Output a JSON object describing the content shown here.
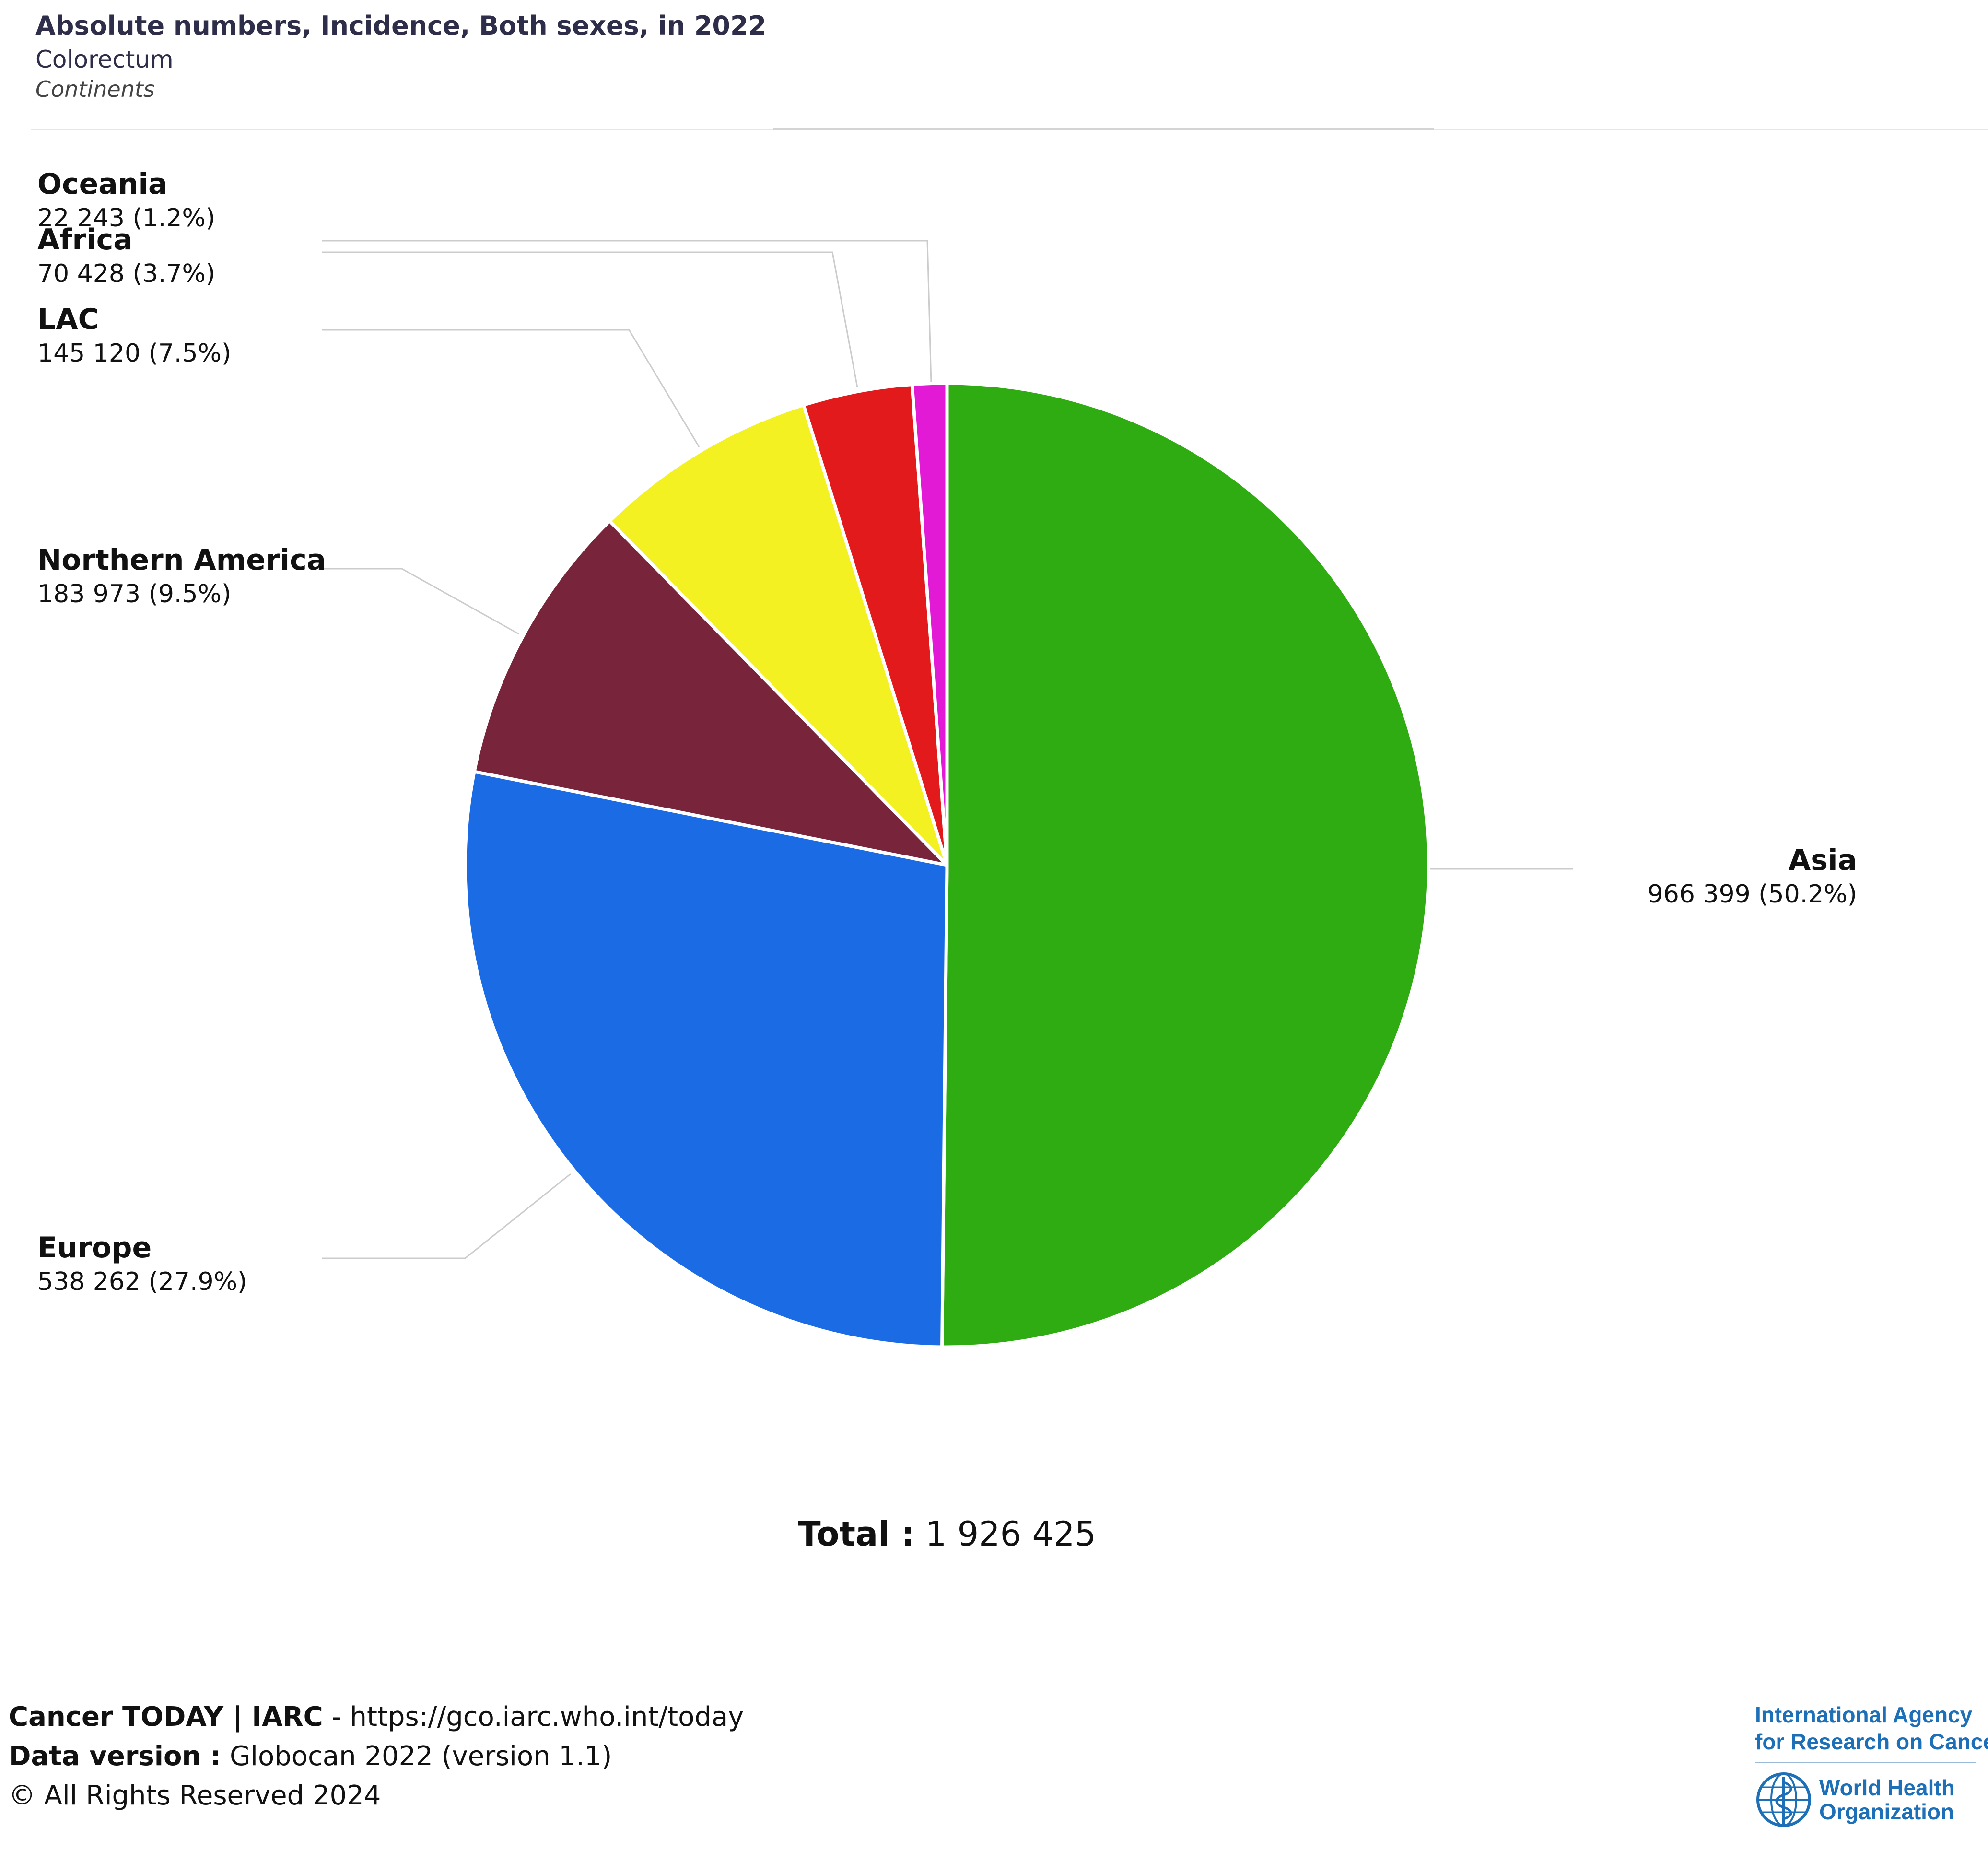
{
  "header": {
    "title": "Absolute numbers, Incidence, Both sexes, in 2022",
    "subtitle": "Colorectum",
    "grouping": "Continents"
  },
  "chart_data": {
    "type": "pie",
    "title": "Absolute numbers, Incidence, Both sexes, in 2022",
    "slices": [
      {
        "label": "Asia",
        "value": 966399,
        "value_text": "966 399",
        "percent": 50.2,
        "percent_text": "(50.2%)",
        "color": "#2fac12"
      },
      {
        "label": "Europe",
        "value": 538262,
        "value_text": "538 262",
        "percent": 27.9,
        "percent_text": "(27.9%)",
        "color": "#1a6be4"
      },
      {
        "label": "Northern America",
        "value": 183973,
        "value_text": "183 973",
        "percent": 9.5,
        "percent_text": "(9.5%)",
        "color": "#78253c"
      },
      {
        "label": "LAC",
        "value": 145120,
        "value_text": "145 120",
        "percent": 7.5,
        "percent_text": "(7.5%)",
        "color": "#f4f123"
      },
      {
        "label": "Africa",
        "value": 70428,
        "value_text": "70 428",
        "percent": 3.7,
        "percent_text": "(3.7%)",
        "color": "#e21a1c"
      },
      {
        "label": "Oceania",
        "value": 22243,
        "value_text": "22 243",
        "percent": 1.2,
        "percent_text": "(1.2%)",
        "color": "#e21ad6"
      }
    ],
    "total_label": "Total :",
    "total_value": "1 926 425"
  },
  "footer": {
    "brand": "Cancer TODAY | IARC",
    "url": " - https://gco.iarc.who.int/today",
    "version_label": "Data version :",
    "version_value": " Globocan 2022 (version 1.1)",
    "rights": "© All Rights Reserved 2024"
  },
  "logos": {
    "iarc_line1": "International Agency",
    "iarc_line2": "for Research on Cancer",
    "who_line1": "World Health",
    "who_line2": "Organization",
    "accent_color": "#1d6fb8"
  }
}
